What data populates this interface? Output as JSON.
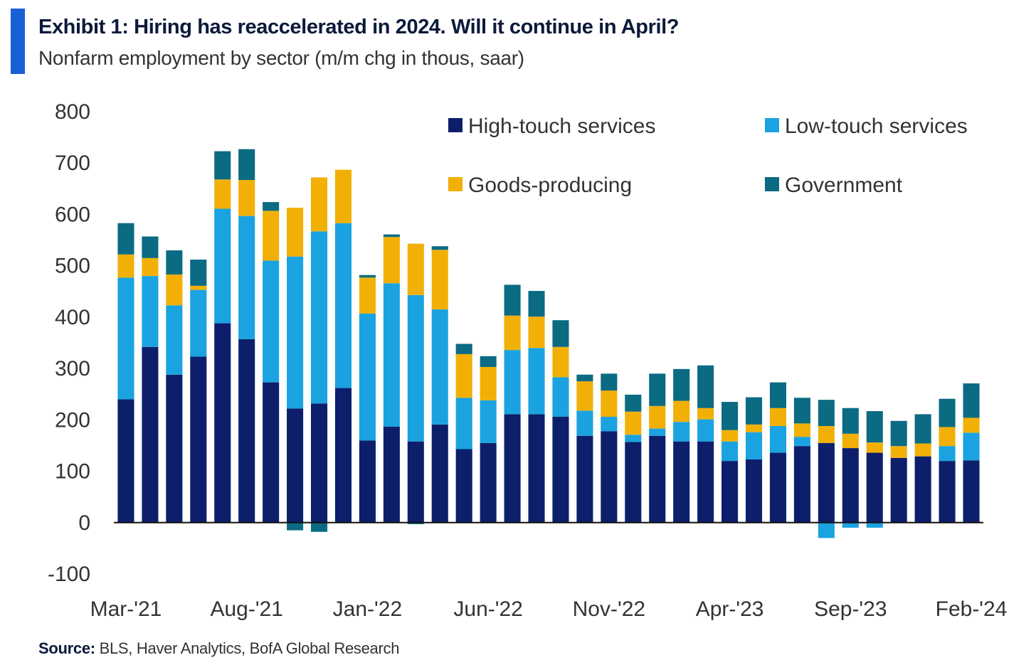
{
  "header": {
    "title": "Exhibit 1: Hiring has reaccelerated in 2024. Will it continue in April?",
    "subtitle": "Nonfarm employment by sector (m/m chg in thous, saar)"
  },
  "footer": {
    "source_label": "Source:",
    "source_text": " BLS, Haver Analytics, BofA Global Research"
  },
  "colors": {
    "accent": "#1a5fd6",
    "high_touch": "#0d1f6b",
    "low_touch": "#1aa3e0",
    "goods": "#f2b007",
    "government": "#0a6b82"
  },
  "chart_data": {
    "type": "bar",
    "stacked": true,
    "title": "Exhibit 1: Hiring has reaccelerated in 2024. Will it continue in April?",
    "subtitle": "Nonfarm employment by sector (m/m chg in thous, saar)",
    "ylim": [
      -100,
      800
    ],
    "yticks": [
      -100,
      0,
      100,
      200,
      300,
      400,
      500,
      600,
      700,
      800
    ],
    "xtick_labels": [
      "Mar-'21",
      "Aug-'21",
      "Jan-'22",
      "Jun-'22",
      "Nov-'22",
      "Apr-'23",
      "Sep-'23",
      "Feb-'24"
    ],
    "legend_position": "top-right",
    "grid": false,
    "categories": [
      "Mar-'21",
      "Apr-'21",
      "May-'21",
      "Jun-'21",
      "Jul-'21",
      "Aug-'21",
      "Sep-'21",
      "Oct-'21",
      "Nov-'21",
      "Dec-'21",
      "Jan-'22",
      "Feb-'22",
      "Mar-'22",
      "Apr-'22",
      "May-'22",
      "Jun-'22",
      "Jul-'22",
      "Aug-'22",
      "Sep-'22",
      "Oct-'22",
      "Nov-'22",
      "Dec-'22",
      "Jan-'23",
      "Feb-'23",
      "Mar-'23",
      "Apr-'23",
      "May-'23",
      "Jun-'23",
      "Jul-'23",
      "Aug-'23",
      "Sep-'23",
      "Oct-'23",
      "Nov-'23",
      "Dec-'23",
      "Jan-'24",
      "Feb-'24"
    ],
    "series": [
      {
        "name": "High-touch services",
        "color": "#0d1f6b",
        "values": [
          240,
          342,
          288,
          323,
          388,
          357,
          273,
          222,
          232,
          262,
          160,
          187,
          158,
          191,
          143,
          155,
          211,
          211,
          206,
          169,
          178,
          157,
          169,
          158,
          158,
          120,
          123,
          136,
          149,
          155,
          145,
          136,
          126,
          129,
          120,
          121
        ]
      },
      {
        "name": "Low-touch services",
        "color": "#1aa3e0",
        "values": [
          237,
          138,
          135,
          130,
          223,
          240,
          237,
          296,
          335,
          321,
          247,
          279,
          285,
          224,
          100,
          83,
          125,
          129,
          77,
          49,
          28,
          14,
          14,
          38,
          43,
          38,
          53,
          52,
          18,
          -30,
          -10,
          -10,
          0,
          0,
          29,
          54
        ]
      },
      {
        "name": "Goods-producing",
        "color": "#f2b007",
        "values": [
          45,
          35,
          60,
          8,
          57,
          70,
          97,
          95,
          105,
          104,
          70,
          90,
          100,
          116,
          85,
          65,
          67,
          61,
          59,
          57,
          51,
          45,
          44,
          41,
          22,
          22,
          15,
          35,
          26,
          33,
          28,
          20,
          23,
          25,
          37,
          29
        ]
      },
      {
        "name": "Government",
        "color": "#0a6b82",
        "values": [
          61,
          42,
          47,
          51,
          55,
          60,
          17,
          -15,
          -18,
          0,
          5,
          5,
          -3,
          7,
          20,
          21,
          60,
          50,
          52,
          13,
          33,
          33,
          63,
          62,
          83,
          55,
          53,
          50,
          50,
          51,
          50,
          61,
          49,
          57,
          55,
          67
        ]
      }
    ]
  }
}
